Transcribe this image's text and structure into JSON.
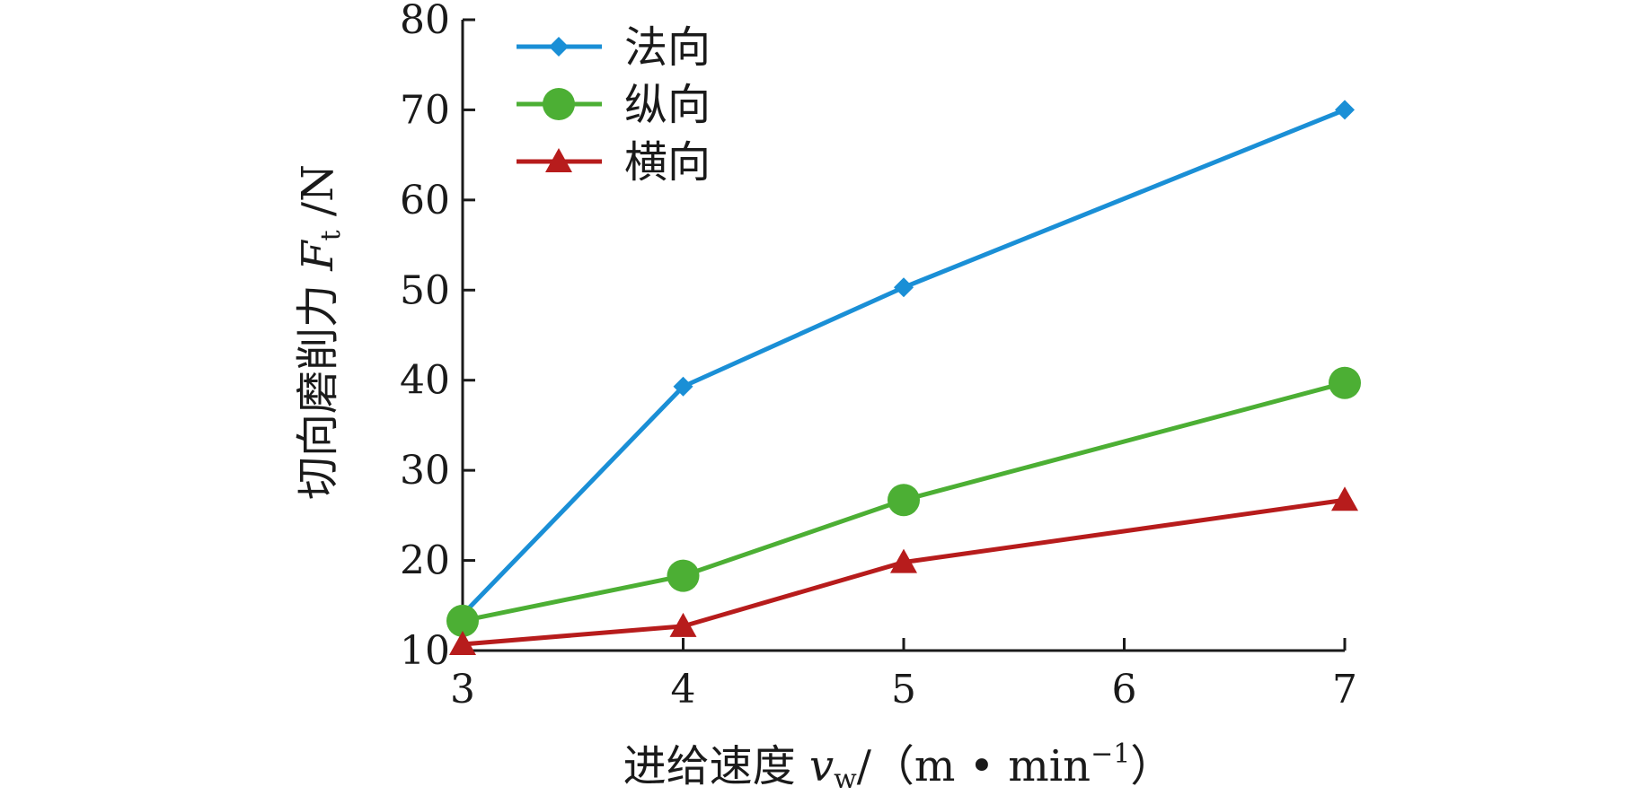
{
  "chart_data": {
    "type": "line",
    "title": "",
    "x": [
      3,
      4,
      5,
      7
    ],
    "xlim": [
      3,
      7
    ],
    "xticks": [
      "3",
      "4",
      "5",
      "6",
      "7"
    ],
    "ylim": [
      10,
      80
    ],
    "yticks": [
      "10",
      "20",
      "30",
      "40",
      "50",
      "60",
      "70",
      "80"
    ],
    "grid": false,
    "legend_position": "top-left",
    "xlabel": {
      "prefix": "进给速度 ",
      "var": "v",
      "sub": "w",
      "unit": "/（m • min",
      "sup": "−1",
      "close": "）"
    },
    "ylabel": {
      "prefix": "切向磨削力 ",
      "var": "F",
      "sub": "t",
      "unit": " /N"
    },
    "series": [
      {
        "name": "法向",
        "color": "#1a8fd6",
        "marker": "diamond",
        "values": [
          14,
          39.3,
          50.3,
          70
        ]
      },
      {
        "name": "纵向",
        "color": "#4caf34",
        "marker": "circle",
        "values": [
          13.3,
          18.3,
          26.7,
          39.7
        ]
      },
      {
        "name": "横向",
        "color": "#b71c1c",
        "marker": "triangle",
        "values": [
          10.7,
          12.7,
          19.8,
          26.7
        ]
      }
    ]
  }
}
